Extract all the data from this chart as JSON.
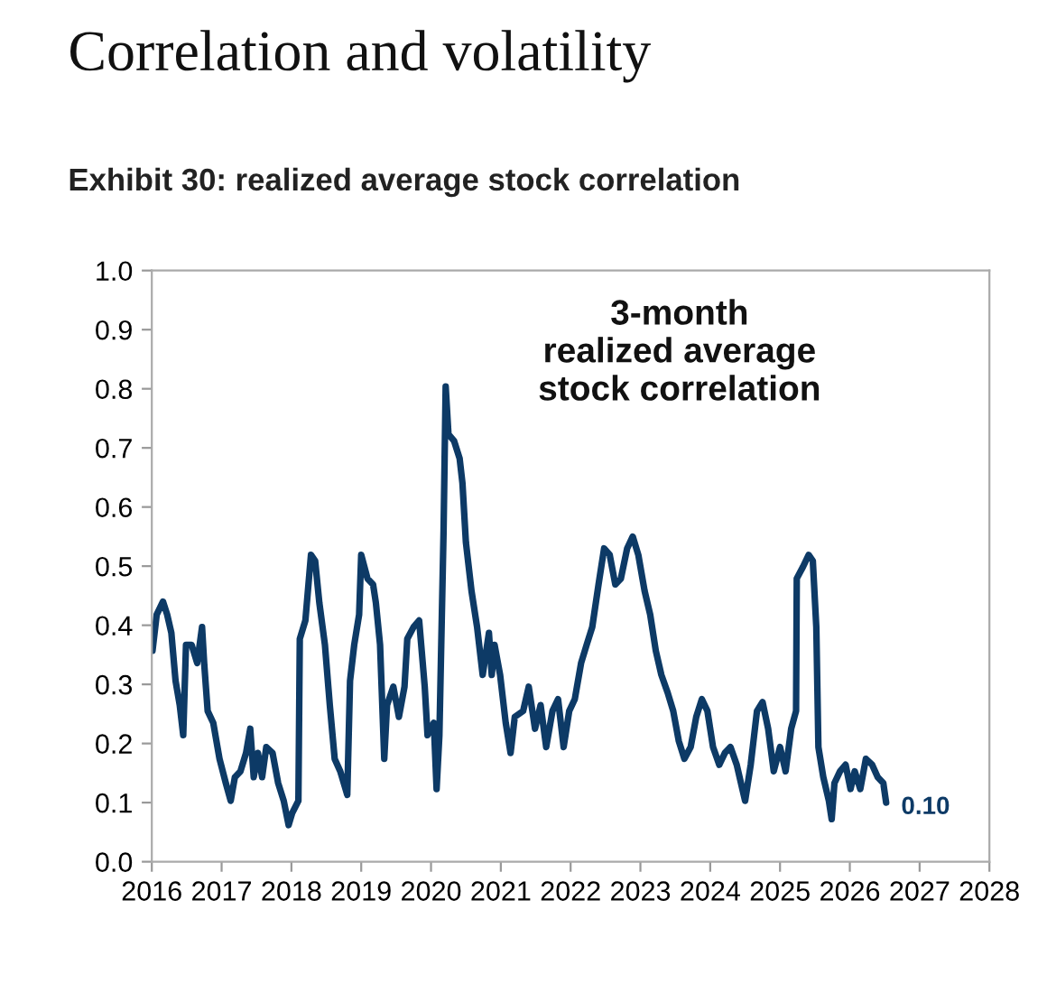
{
  "chart_data": {
    "type": "line",
    "title": "Correlation and volatility",
    "subtitle": "Exhibit 30: realized average stock correlation",
    "annotations": [
      "3-month\nrealized average\nstock correlation",
      {
        "text": "0.10",
        "x": 2026.52,
        "y": 0.1
      }
    ],
    "series": [
      {
        "color": "#0d3a66",
        "x": [
          2016.01,
          2016.07,
          2016.16,
          2016.22,
          2016.28,
          2016.34,
          2016.4,
          2016.45,
          2016.49,
          2016.57,
          2016.65,
          2016.72,
          2016.75,
          2016.8,
          2016.88,
          2016.97,
          2017.06,
          2017.13,
          2017.19,
          2017.27,
          2017.35,
          2017.41,
          2017.46,
          2017.52,
          2017.58,
          2017.64,
          2017.73,
          2017.81,
          2017.89,
          2017.96,
          2018.01,
          2018.1,
          2018.12,
          2018.2,
          2018.28,
          2018.34,
          2018.4,
          2018.48,
          2018.55,
          2018.62,
          2018.7,
          2018.8,
          2018.84,
          2018.9,
          2018.97,
          2019.0,
          2019.09,
          2019.17,
          2019.21,
          2019.27,
          2019.33,
          2019.37,
          2019.46,
          2019.54,
          2019.62,
          2019.66,
          2019.75,
          2019.83,
          2019.91,
          2019.95,
          2020.04,
          2020.08,
          2020.12,
          2020.18,
          2020.21,
          2020.25,
          2020.33,
          2020.41,
          2020.45,
          2020.5,
          2020.58,
          2020.66,
          2020.74,
          2020.83,
          2020.87,
          2020.91,
          2020.99,
          2021.07,
          2021.14,
          2021.2,
          2021.32,
          2021.4,
          2021.49,
          2021.57,
          2021.65,
          2021.74,
          2021.82,
          2021.9,
          2021.98,
          2022.06,
          2022.15,
          2022.23,
          2022.31,
          2022.4,
          2022.48,
          2022.56,
          2022.64,
          2022.72,
          2022.81,
          2022.89,
          2022.97,
          2023.06,
          2023.14,
          2023.22,
          2023.3,
          2023.39,
          2023.47,
          2023.55,
          2023.63,
          2023.72,
          2023.8,
          2023.88,
          2023.96,
          2024.04,
          2024.13,
          2024.21,
          2024.29,
          2024.38,
          2024.46,
          2024.5,
          2024.58,
          2024.67,
          2024.75,
          2024.83,
          2024.91,
          2025.0,
          2025.08,
          2025.16,
          2025.23,
          2025.24,
          2025.33,
          2025.41,
          2025.47,
          2025.52,
          2025.55,
          2025.62,
          2025.7,
          2025.74,
          2025.78,
          2025.86,
          2025.94,
          2026.01,
          2026.07,
          2026.15,
          2026.23,
          2026.32,
          2026.4,
          2026.48,
          2026.52
        ],
        "values": [
          0.357,
          0.418,
          0.44,
          0.418,
          0.387,
          0.306,
          0.265,
          0.214,
          0.367,
          0.367,
          0.336,
          0.397,
          0.336,
          0.255,
          0.235,
          0.174,
          0.133,
          0.103,
          0.143,
          0.153,
          0.184,
          0.225,
          0.143,
          0.184,
          0.143,
          0.194,
          0.184,
          0.133,
          0.103,
          0.062,
          0.082,
          0.103,
          0.377,
          0.408,
          0.519,
          0.509,
          0.438,
          0.367,
          0.265,
          0.174,
          0.153,
          0.113,
          0.306,
          0.367,
          0.418,
          0.519,
          0.479,
          0.469,
          0.438,
          0.367,
          0.174,
          0.265,
          0.296,
          0.245,
          0.296,
          0.377,
          0.397,
          0.408,
          0.296,
          0.214,
          0.235,
          0.123,
          0.214,
          0.56,
          0.804,
          0.723,
          0.712,
          0.682,
          0.641,
          0.54,
          0.458,
          0.397,
          0.316,
          0.387,
          0.316,
          0.367,
          0.316,
          0.235,
          0.184,
          0.245,
          0.255,
          0.296,
          0.225,
          0.265,
          0.194,
          0.255,
          0.275,
          0.194,
          0.255,
          0.275,
          0.336,
          0.367,
          0.397,
          0.469,
          0.53,
          0.519,
          0.469,
          0.479,
          0.53,
          0.55,
          0.519,
          0.458,
          0.418,
          0.357,
          0.316,
          0.286,
          0.255,
          0.204,
          0.174,
          0.194,
          0.245,
          0.275,
          0.255,
          0.194,
          0.164,
          0.184,
          0.194,
          0.164,
          0.123,
          0.103,
          0.164,
          0.255,
          0.27,
          0.225,
          0.153,
          0.194,
          0.153,
          0.225,
          0.255,
          0.479,
          0.499,
          0.519,
          0.509,
          0.397,
          0.194,
          0.143,
          0.103,
          0.072,
          0.133,
          0.153,
          0.164,
          0.123,
          0.153,
          0.123,
          0.174,
          0.164,
          0.143,
          0.133,
          0.1
        ]
      }
    ],
    "xlim": [
      2016,
      2028
    ],
    "xticks": [
      2016,
      2017,
      2018,
      2019,
      2020,
      2021,
      2022,
      2023,
      2024,
      2025,
      2026,
      2027,
      2028
    ],
    "ylim": [
      0.0,
      1.0
    ],
    "yticks": [
      {
        "value": 0.0,
        "label": "0.0"
      },
      {
        "value": 0.1,
        "label": "0.1"
      },
      {
        "value": 0.2,
        "label": "0.2"
      },
      {
        "value": 0.3,
        "label": "0.3"
      },
      {
        "value": 0.4,
        "label": "0.4"
      },
      {
        "value": 0.5,
        "label": "0.5"
      },
      {
        "value": 0.6,
        "label": "0.6"
      },
      {
        "value": 0.7,
        "label": "0.7"
      },
      {
        "value": 0.8,
        "label": "0.8"
      },
      {
        "value": 0.9,
        "label": "0.9"
      },
      {
        "value": 1.0,
        "label": "1.0"
      }
    ],
    "grid": false,
    "legend": false
  }
}
